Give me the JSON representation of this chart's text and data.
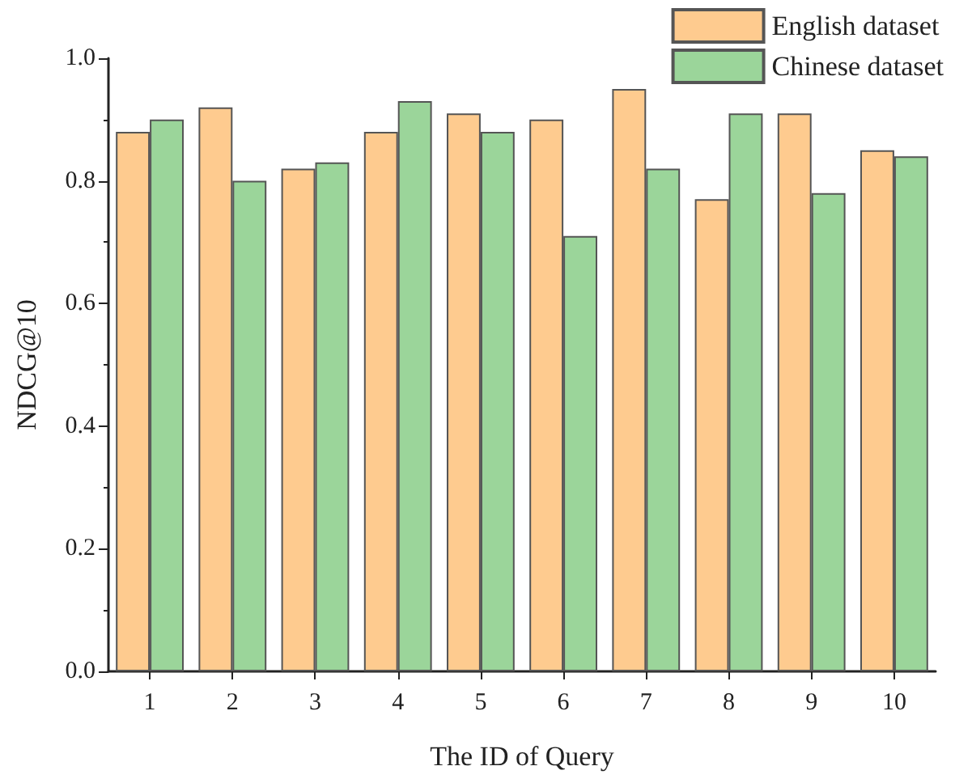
{
  "chart_data": {
    "type": "bar",
    "xlabel": "The ID of Query",
    "ylabel": "NDCG@10",
    "categories": [
      "1",
      "2",
      "3",
      "4",
      "5",
      "6",
      "7",
      "8",
      "9",
      "10"
    ],
    "series": [
      {
        "name": "English dataset",
        "color": "#fecb8f",
        "values": [
          0.88,
          0.92,
          0.82,
          0.88,
          0.91,
          0.9,
          0.95,
          0.77,
          0.91,
          0.85
        ]
      },
      {
        "name": "Chinese dataset",
        "color": "#9bd59a",
        "values": [
          0.9,
          0.8,
          0.83,
          0.93,
          0.88,
          0.71,
          0.82,
          0.91,
          0.78,
          0.84
        ]
      }
    ],
    "ylim": [
      0,
      1.0
    ],
    "yticks": [
      {
        "value": 0,
        "label": "0.0"
      },
      0.2,
      0.4,
      0.6,
      0.8,
      {
        "value": 1,
        "label": "1.0"
      }
    ],
    "grid": false,
    "legend": "top right"
  }
}
